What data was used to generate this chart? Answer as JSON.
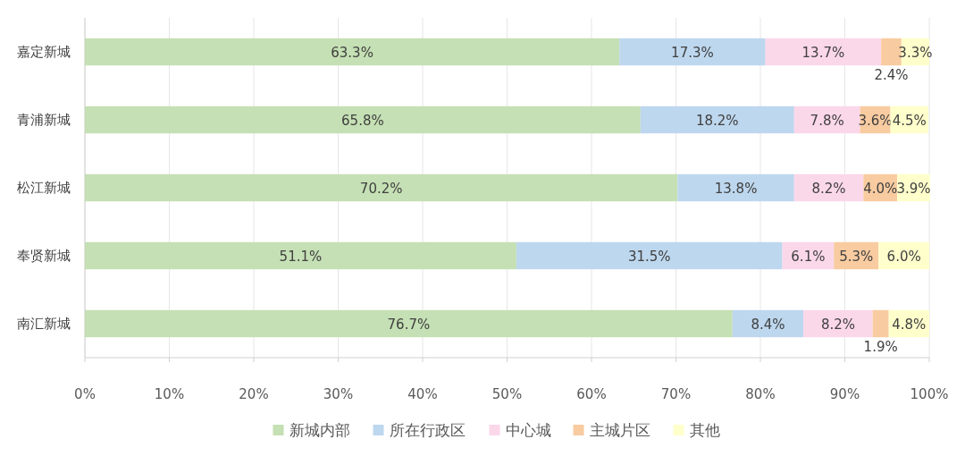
{
  "chart_data": {
    "type": "bar",
    "orientation": "horizontal",
    "stacked": true,
    "grid": "x",
    "legend": "bottom",
    "categories": [
      "嘉定新城",
      "青浦新城",
      "松江新城",
      "奉贤新城",
      "南汇新城"
    ],
    "xlim": [
      0,
      100
    ],
    "xticks": [
      {
        "value": 0,
        "label": "0%"
      },
      {
        "value": 10,
        "label": "10%"
      },
      {
        "value": 20,
        "label": "20%"
      },
      {
        "value": 30,
        "label": "30%"
      },
      {
        "value": 40,
        "label": "40%"
      },
      {
        "value": 50,
        "label": "50%"
      },
      {
        "value": 60,
        "label": "60%"
      },
      {
        "value": 70,
        "label": "70%"
      },
      {
        "value": 80,
        "label": "80%"
      },
      {
        "value": 90,
        "label": "90%"
      },
      {
        "value": 100,
        "label": "100%"
      }
    ],
    "series": [
      {
        "name": "新城内部",
        "color": "#c5e0b4",
        "values": [
          63.3,
          65.8,
          70.2,
          51.1,
          76.7
        ],
        "value_labels": [
          "63.3%",
          "65.8%",
          "70.2%",
          "51.1%",
          "76.7%"
        ]
      },
      {
        "name": "所在行政区",
        "color": "#bdd7ee",
        "values": [
          17.3,
          18.2,
          13.8,
          31.5,
          8.4
        ],
        "value_labels": [
          "17.3%",
          "18.2%",
          "13.8%",
          "31.5%",
          "8.4%"
        ]
      },
      {
        "name": "中心城",
        "color": "#fbd7ea",
        "values": [
          13.7,
          7.8,
          8.2,
          6.1,
          8.2
        ],
        "value_labels": [
          "13.7%",
          "7.8%",
          "8.2%",
          "6.1%",
          "8.2%"
        ]
      },
      {
        "name": "主城片区",
        "color": "#f8cba0",
        "values": [
          2.4,
          3.6,
          4.0,
          5.3,
          1.9
        ],
        "value_labels": [
          "2.4%",
          "3.6%",
          "4.0%",
          "5.3%",
          "1.9%"
        ]
      },
      {
        "name": "其他",
        "color": "#ffffcc",
        "values": [
          3.3,
          4.5,
          3.9,
          6.0,
          4.8
        ],
        "value_labels": [
          "3.3%",
          "4.5%",
          "3.9%",
          "6.0%",
          "4.8%"
        ]
      }
    ]
  }
}
